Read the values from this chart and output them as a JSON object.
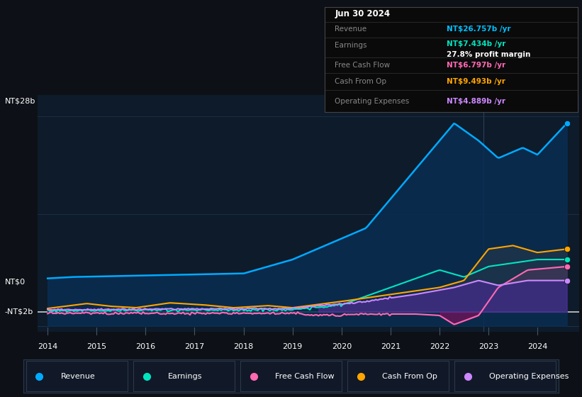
{
  "bg_color": "#0d1117",
  "plot_bg_color": "#0d1b2a",
  "info_box": {
    "date": "Jun 30 2024",
    "revenue_val": "NT$26.757b",
    "revenue_color": "#00bfff",
    "earnings_val": "NT$7.434b",
    "earnings_color": "#00e5c0",
    "profit_margin": "27.8%",
    "fcf_val": "NT$6.797b",
    "fcf_color": "#ff69b4",
    "cashfromop_val": "NT$9.493b",
    "cashfromop_color": "#ffa500",
    "opex_val": "NT$4.889b",
    "opex_color": "#cc88ff"
  },
  "legend_items": [
    {
      "label": "Revenue",
      "color": "#00aaff"
    },
    {
      "label": "Earnings",
      "color": "#00e5c0"
    },
    {
      "label": "Free Cash Flow",
      "color": "#ff69b4"
    },
    {
      "label": "Cash From Op",
      "color": "#ffa500"
    },
    {
      "label": "Operating Expenses",
      "color": "#cc88ff"
    }
  ],
  "revenue_color": "#00aaff",
  "revenue_fill": "#0e3d6e",
  "earnings_color": "#00e5c0",
  "fcf_color": "#ff69b4",
  "cashfromop_color": "#ffa500",
  "opex_color": "#cc88ff",
  "grid_color": "#1e3048",
  "zero_line_color": "#cccccc",
  "ylabel_nt28": "NT$28b",
  "ylabel_nt0": "NT$0",
  "ylabel_ntm2": "-NT$2b",
  "xticks": [
    2014,
    2015,
    2016,
    2017,
    2018,
    2019,
    2020,
    2021,
    2022,
    2023,
    2024
  ]
}
